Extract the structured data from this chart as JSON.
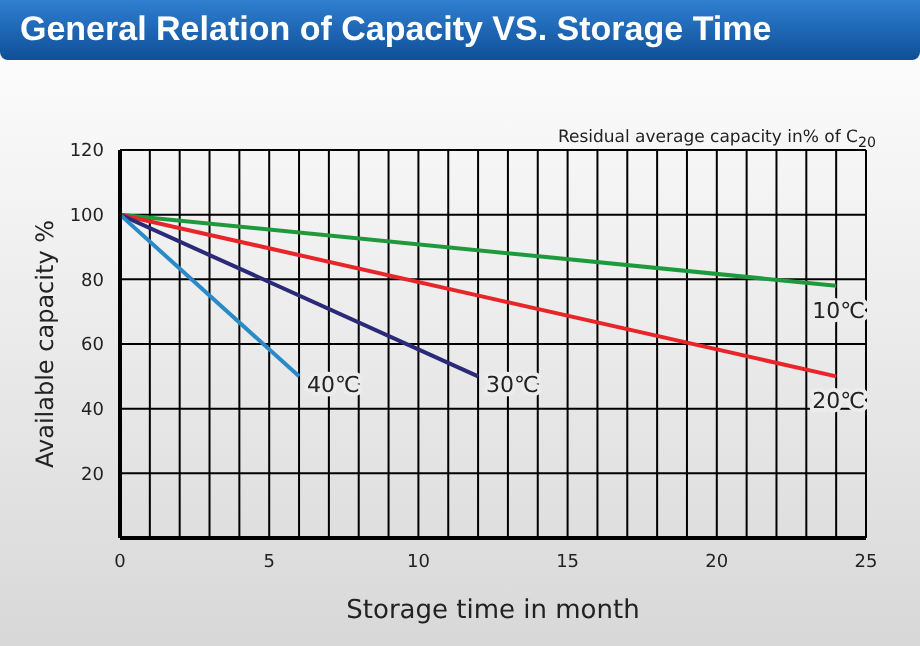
{
  "chart_data": {
    "type": "line",
    "title": "General Relation of Capacity VS. Storage Time",
    "annotations": [
      "Residual average capacity in% of C$_{20}$"
    ],
    "xlabel": "Storage time in month",
    "ylabel": "Available capacity %",
    "series": [
      {
        "name": "10℃",
        "color": "#1e9a3c",
        "x": [
          0,
          24
        ],
        "values": [
          100,
          78
        ]
      },
      {
        "name": "20℃",
        "color": "#e8262a",
        "x": [
          0,
          24
        ],
        "values": [
          100,
          50
        ]
      },
      {
        "name": "30℃",
        "color": "#2b2a78",
        "x": [
          0,
          12
        ],
        "values": [
          100,
          50
        ]
      },
      {
        "name": "40℃",
        "color": "#2a8ac8",
        "x": [
          0,
          6
        ],
        "values": [
          100,
          50
        ]
      }
    ],
    "xlim": [
      0,
      25
    ],
    "xticks": [
      0,
      {
        "value": 1,
        "label": null
      },
      {
        "value": 2,
        "label": null
      },
      {
        "value": 3,
        "label": null
      },
      {
        "value": 4,
        "label": null
      },
      5,
      {
        "value": 6,
        "label": null
      },
      {
        "value": 7,
        "label": null
      },
      {
        "value": 8,
        "label": null
      },
      {
        "value": 9,
        "label": null
      },
      10,
      {
        "value": 11,
        "label": null
      },
      {
        "value": 12,
        "label": null
      },
      {
        "value": 13,
        "label": null
      },
      {
        "value": 14,
        "label": null
      },
      15,
      {
        "value": 16,
        "label": null
      },
      {
        "value": 17,
        "label": null
      },
      {
        "value": 18,
        "label": null
      },
      {
        "value": 19,
        "label": null
      },
      20,
      {
        "value": 21,
        "label": null
      },
      {
        "value": 22,
        "label": null
      },
      {
        "value": 23,
        "label": null
      },
      {
        "value": 24,
        "label": null
      },
      25
    ],
    "ylim": [
      0,
      120
    ],
    "yticks": [
      {
        "value": 0,
        "label": null
      },
      20,
      40,
      60,
      80,
      100,
      120
    ],
    "grid": true,
    "legend": false,
    "marker": "none",
    "line_style": "solid"
  }
}
